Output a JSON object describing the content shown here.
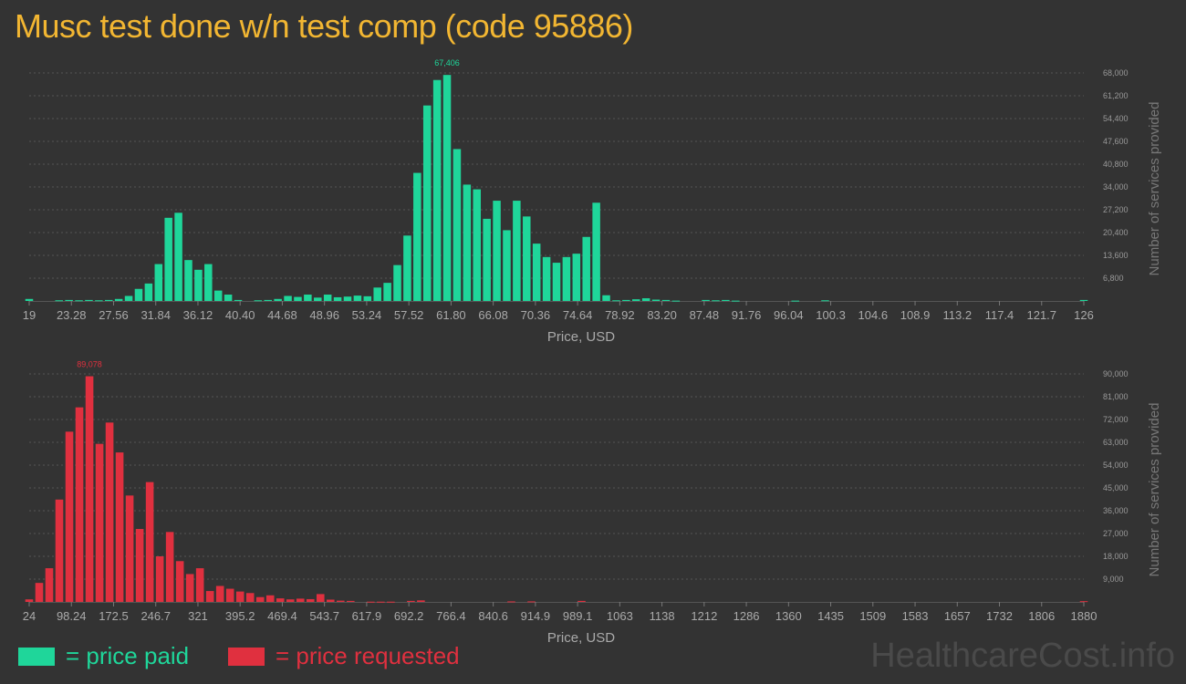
{
  "title": "Musc test done w/n test comp (code 95886)",
  "colors": {
    "paid": "#1fd69a",
    "requested": "#e0303f",
    "title": "#f2b632",
    "background": "#333333"
  },
  "legend": {
    "paid": "= price paid",
    "requested": "= price requested"
  },
  "watermark": "HealthcareCost.info",
  "chart_data": [
    {
      "type": "bar",
      "color": "#1fd69a",
      "xlabel": "Price, USD",
      "ylabel": "Number of services provided",
      "peak_label": "67,406",
      "ylim": [
        0,
        68000
      ],
      "xlim": [
        19,
        126
      ],
      "x_ticks": [
        "19",
        "23.28",
        "27.56",
        "31.84",
        "36.12",
        "40.40",
        "44.68",
        "48.96",
        "53.24",
        "57.52",
        "61.80",
        "66.08",
        "70.36",
        "74.64",
        "78.92",
        "83.20",
        "87.48",
        "91.76",
        "96.04",
        "100.3",
        "104.6",
        "108.9",
        "113.2",
        "117.4",
        "121.7",
        "126"
      ],
      "y_ticks": [
        "68,000",
        "61,200",
        "54,400",
        "47,600",
        "40,800",
        "34,000",
        "27,200",
        "20,400",
        "13,600",
        "6,800"
      ],
      "y_tick_values": [
        68000,
        61200,
        54400,
        47600,
        40800,
        34000,
        27200,
        20400,
        13600,
        6800
      ],
      "values": [
        600,
        0,
        0,
        200,
        300,
        200,
        300,
        200,
        300,
        600,
        1500,
        3600,
        5200,
        11000,
        24800,
        26300,
        12200,
        9300,
        11000,
        3100,
        1900,
        300,
        0,
        200,
        300,
        600,
        1500,
        1200,
        1900,
        1000,
        1900,
        1100,
        1300,
        1600,
        1400,
        4000,
        5400,
        10700,
        19500,
        38200,
        58300,
        65900,
        67406,
        45300,
        34700,
        33300,
        24500,
        29900,
        21100,
        29900,
        25200,
        17100,
        13100,
        11400,
        13100,
        14100,
        19100,
        29300,
        1700,
        200,
        300,
        500,
        800,
        400,
        300,
        100,
        0,
        0,
        300,
        200,
        300,
        100,
        0,
        0,
        0,
        0,
        0,
        100,
        0,
        0,
        200,
        0,
        0,
        0,
        0,
        0,
        0,
        0,
        0,
        0,
        0,
        0,
        0,
        0,
        0,
        0,
        0,
        0,
        0,
        0,
        0,
        0,
        0,
        0,
        0,
        0,
        300
      ]
    },
    {
      "type": "bar",
      "color": "#e0303f",
      "xlabel": "Price, USD",
      "ylabel": "Number of services provided",
      "peak_label": "89,078",
      "ylim": [
        0,
        90000
      ],
      "xlim": [
        24,
        1880
      ],
      "x_ticks": [
        "24",
        "98.24",
        "172.5",
        "246.7",
        "321",
        "395.2",
        "469.4",
        "543.7",
        "617.9",
        "692.2",
        "766.4",
        "840.6",
        "914.9",
        "989.1",
        "1063",
        "1138",
        "1212",
        "1286",
        "1360",
        "1435",
        "1509",
        "1583",
        "1657",
        "1732",
        "1806",
        "1880"
      ],
      "y_ticks": [
        "90,000",
        "81,000",
        "72,000",
        "63,000",
        "54,000",
        "45,000",
        "36,000",
        "27,000",
        "18,000",
        "9,000"
      ],
      "y_tick_values": [
        90000,
        81000,
        72000,
        63000,
        54000,
        45000,
        36000,
        27000,
        18000,
        9000
      ],
      "values": [
        1000,
        7500,
        13300,
        40400,
        67200,
        76800,
        89078,
        62400,
        70800,
        59000,
        42000,
        28800,
        47300,
        18000,
        27600,
        16100,
        11000,
        13300,
        4300,
        6300,
        5200,
        4100,
        3500,
        1900,
        2600,
        1400,
        1000,
        1300,
        1100,
        3100,
        900,
        500,
        400,
        0,
        100,
        100,
        100,
        0,
        400,
        600,
        0,
        0,
        0,
        0,
        0,
        0,
        0,
        0,
        200,
        0,
        200,
        0,
        0,
        0,
        0,
        400,
        0,
        0,
        0,
        0,
        0,
        0,
        0,
        0,
        0,
        0,
        0,
        0,
        0,
        0,
        0,
        0,
        0,
        0,
        0,
        0,
        0,
        0,
        0,
        0,
        0,
        0,
        0,
        0,
        0,
        0,
        0,
        0,
        0,
        0,
        0,
        0,
        0,
        0,
        0,
        0,
        0,
        0,
        0,
        0,
        0,
        0,
        0,
        0,
        0,
        300
      ]
    }
  ]
}
